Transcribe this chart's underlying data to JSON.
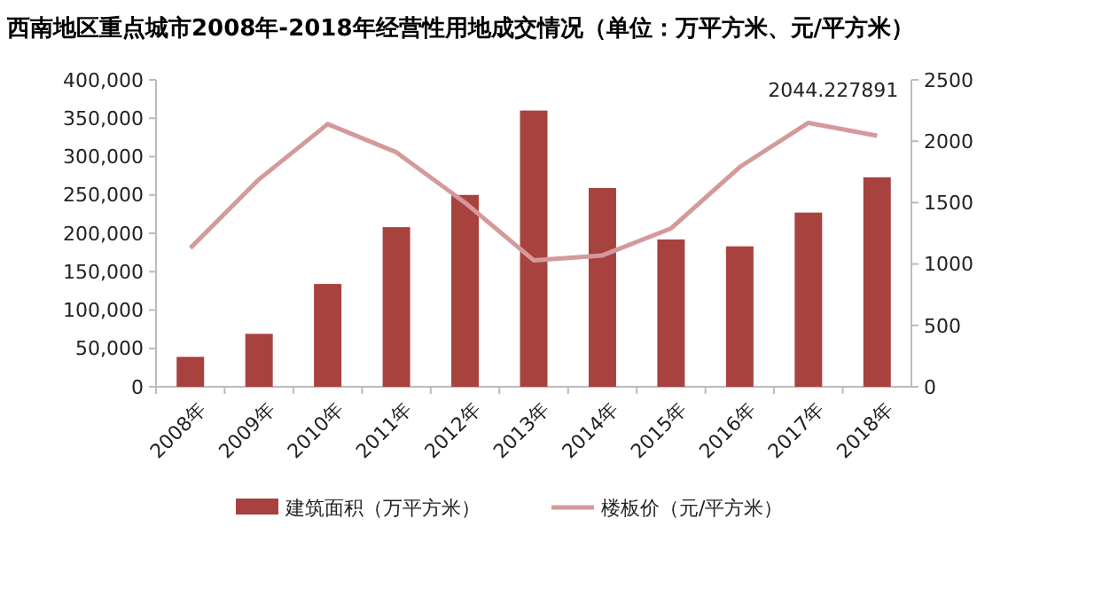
{
  "chart_data": {
    "type": "bar",
    "title": "西南地区重点城市2008年-2018年经营性用地成交情况（单位：万平方米、元/平方米）",
    "categories": [
      "2008年",
      "2009年",
      "2010年",
      "2011年",
      "2012年",
      "2013年",
      "2014年",
      "2015年",
      "2016年",
      "2017年",
      "2018年"
    ],
    "series": [
      {
        "name": "建筑面积（万平方米）",
        "color": "#a8423f",
        "values": [
          39000,
          69000,
          134000,
          208000,
          250000,
          360000,
          259000,
          192000,
          183000,
          227000,
          273000
        ]
      },
      {
        "name": "楼板价（元/平方米）",
        "type": "line",
        "axis": "y2",
        "color": "#d49a9b",
        "values": [
          1130,
          1690,
          2140,
          1910,
          1500,
          1030,
          1070,
          1290,
          1790,
          2150,
          2044.227891
        ],
        "value_labels": [
          null,
          null,
          null,
          null,
          null,
          null,
          null,
          null,
          null,
          null,
          "2044.227891"
        ]
      }
    ],
    "ylim": [
      0,
      400000
    ],
    "yticks": [
      {
        "value": 0,
        "label": "0"
      },
      {
        "value": 50000,
        "label": "50,000"
      },
      {
        "value": 100000,
        "label": "100,000"
      },
      {
        "value": 150000,
        "label": "150,000"
      },
      {
        "value": 200000,
        "label": "200,000"
      },
      {
        "value": 250000,
        "label": "250,000"
      },
      {
        "value": 300000,
        "label": "300,000"
      },
      {
        "value": 350000,
        "label": "350,000"
      },
      {
        "value": 400000,
        "label": "400,000"
      }
    ],
    "y2lim": [
      0,
      2500
    ],
    "y2ticks": [
      0,
      500,
      1000,
      1500,
      2000,
      2500
    ],
    "legend": "bottom",
    "grid": false,
    "marker": "none"
  }
}
